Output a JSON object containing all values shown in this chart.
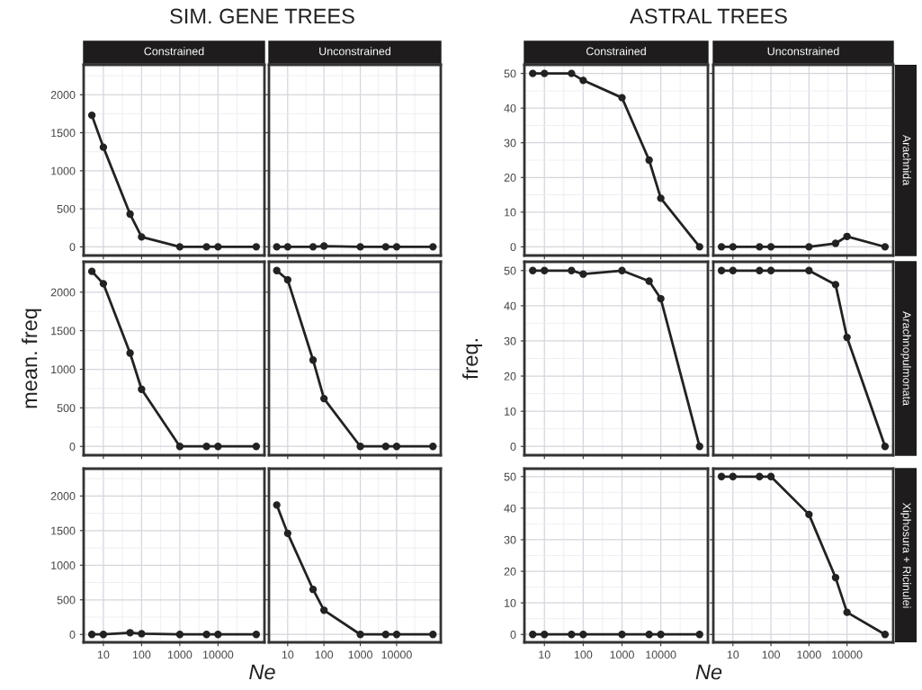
{
  "chart_data": [
    {
      "type": "line",
      "title": "Constrained",
      "annotations": [
        "SIM. GENE TREES"
      ],
      "x": [
        5,
        10,
        50,
        100,
        1000,
        5000,
        10000,
        100000
      ],
      "series": [
        {
          "color": "#222222",
          "values": [
            1730,
            1310,
            430,
            130,
            0,
            0,
            0,
            0
          ]
        }
      ],
      "log": "x",
      "xlim": [
        3.05,
        164000
      ],
      "xticks": [
        10,
        100,
        1000,
        10000
      ],
      "ylim": [
        -114,
        2394
      ],
      "yticks": [
        0,
        500,
        1000,
        1500,
        2000
      ],
      "grid": true,
      "marker": "circle",
      "line_style": "solid",
      "tick_labels": "y"
    },
    {
      "type": "line",
      "title": "Unconstrained",
      "x": [
        5,
        10,
        50,
        100,
        1000,
        5000,
        10000,
        100000
      ],
      "series": [
        {
          "color": "#222222",
          "values": [
            0,
            0,
            0,
            10,
            0,
            0,
            0,
            0
          ]
        }
      ],
      "log": "x",
      "xlim": [
        3.05,
        164000
      ],
      "xticks": [
        10,
        100,
        1000,
        10000
      ],
      "ylim": [
        -114,
        2394
      ],
      "yticks": [
        0,
        500,
        1000,
        1500,
        2000
      ],
      "grid": true,
      "marker": "circle",
      "line_style": "solid",
      "tick_labels": false
    },
    {
      "type": "line",
      "ylabel": "mean. freq",
      "x": [
        5,
        10,
        50,
        100,
        1000,
        5000,
        10000,
        100000
      ],
      "series": [
        {
          "color": "#222222",
          "values": [
            2270,
            2110,
            1210,
            740,
            0,
            0,
            0,
            0
          ]
        }
      ],
      "log": "x",
      "xlim": [
        3.05,
        164000
      ],
      "xticks": [
        10,
        100,
        1000,
        10000
      ],
      "ylim": [
        -114,
        2394
      ],
      "yticks": [
        0,
        500,
        1000,
        1500,
        2000
      ],
      "grid": true,
      "marker": "circle",
      "line_style": "solid",
      "tick_labels": "y"
    },
    {
      "type": "line",
      "x": [
        5,
        10,
        50,
        100,
        1000,
        5000,
        10000,
        100000
      ],
      "series": [
        {
          "color": "#222222",
          "values": [
            2280,
            2160,
            1120,
            620,
            0,
            0,
            0,
            0
          ]
        }
      ],
      "log": "x",
      "xlim": [
        3.05,
        164000
      ],
      "xticks": [
        10,
        100,
        1000,
        10000
      ],
      "ylim": [
        -114,
        2394
      ],
      "yticks": [
        0,
        500,
        1000,
        1500,
        2000
      ],
      "grid": true,
      "marker": "circle",
      "line_style": "solid",
      "tick_labels": false
    },
    {
      "type": "line",
      "xlabel": "Ne",
      "x": [
        5,
        10,
        50,
        100,
        1000,
        5000,
        10000,
        100000
      ],
      "series": [
        {
          "color": "#222222",
          "values": [
            0,
            0,
            25,
            10,
            0,
            0,
            0,
            0
          ]
        }
      ],
      "log": "x",
      "xlim": [
        3.05,
        164000
      ],
      "xticks": [
        10,
        100,
        1000,
        10000
      ],
      "ylim": [
        -114,
        2394
      ],
      "yticks": [
        0,
        500,
        1000,
        1500,
        2000
      ],
      "grid": true,
      "marker": "circle",
      "line_style": "solid"
    },
    {
      "type": "line",
      "x": [
        5,
        10,
        50,
        100,
        1000,
        5000,
        10000,
        100000
      ],
      "series": [
        {
          "color": "#222222",
          "values": [
            1870,
            1460,
            650,
            350,
            0,
            0,
            0,
            0
          ]
        }
      ],
      "log": "x",
      "xlim": [
        3.05,
        164000
      ],
      "xticks": [
        10,
        100,
        1000,
        10000
      ],
      "ylim": [
        -114,
        2394
      ],
      "yticks": [
        0,
        500,
        1000,
        1500,
        2000
      ],
      "grid": true,
      "marker": "circle",
      "line_style": "solid",
      "tick_labels": "x"
    },
    {
      "type": "line",
      "title": "Constrained",
      "annotations": [
        "ASTRAL TREES"
      ],
      "x": [
        5,
        10,
        50,
        100,
        1000,
        5000,
        10000,
        100000
      ],
      "series": [
        {
          "color": "#222222",
          "values": [
            50,
            50,
            50,
            48,
            43,
            25,
            14,
            0
          ]
        }
      ],
      "log": "x",
      "xlim": [
        3.05,
        164000
      ],
      "xticks": [
        10,
        100,
        1000,
        10000
      ],
      "ylim": [
        -2.5,
        52.5
      ],
      "yticks": [
        0,
        10,
        20,
        30,
        40,
        50
      ],
      "grid": true,
      "marker": "circle",
      "line_style": "solid",
      "tick_labels": "y"
    },
    {
      "type": "line",
      "title": "Unconstrained",
      "x": [
        5,
        10,
        50,
        100,
        1000,
        5000,
        10000,
        100000
      ],
      "series": [
        {
          "color": "#222222",
          "values": [
            0,
            0,
            0,
            0,
            0,
            1,
            3,
            0
          ]
        }
      ],
      "log": "x",
      "xlim": [
        3.05,
        164000
      ],
      "xticks": [
        10,
        100,
        1000,
        10000
      ],
      "ylim": [
        -2.5,
        52.5
      ],
      "yticks": [
        0,
        10,
        20,
        30,
        40,
        50
      ],
      "grid": true,
      "marker": "circle",
      "line_style": "solid",
      "tick_labels": false
    },
    {
      "type": "line",
      "ylabel": "freq.",
      "x": [
        5,
        10,
        50,
        100,
        1000,
        5000,
        10000,
        100000
      ],
      "series": [
        {
          "color": "#222222",
          "values": [
            50,
            50,
            50,
            49,
            50,
            47,
            42,
            0
          ]
        }
      ],
      "log": "x",
      "xlim": [
        3.05,
        164000
      ],
      "xticks": [
        10,
        100,
        1000,
        10000
      ],
      "ylim": [
        -2.5,
        52.5
      ],
      "yticks": [
        0,
        10,
        20,
        30,
        40,
        50
      ],
      "grid": true,
      "marker": "circle",
      "line_style": "solid",
      "tick_labels": "y"
    },
    {
      "type": "line",
      "x": [
        5,
        10,
        50,
        100,
        1000,
        5000,
        10000,
        100000
      ],
      "series": [
        {
          "color": "#222222",
          "values": [
            50,
            50,
            50,
            50,
            50,
            46,
            31,
            0
          ]
        }
      ],
      "log": "x",
      "xlim": [
        3.05,
        164000
      ],
      "xticks": [
        10,
        100,
        1000,
        10000
      ],
      "ylim": [
        -2.5,
        52.5
      ],
      "yticks": [
        0,
        10,
        20,
        30,
        40,
        50
      ],
      "grid": true,
      "marker": "circle",
      "line_style": "solid",
      "tick_labels": false
    },
    {
      "type": "line",
      "xlabel": "Ne",
      "x": [
        5,
        10,
        50,
        100,
        1000,
        5000,
        10000,
        100000
      ],
      "series": [
        {
          "color": "#222222",
          "values": [
            0,
            0,
            0,
            0,
            0,
            0,
            0,
            0
          ]
        }
      ],
      "log": "x",
      "xlim": [
        3.05,
        164000
      ],
      "xticks": [
        10,
        100,
        1000,
        10000
      ],
      "ylim": [
        -2.5,
        52.5
      ],
      "yticks": [
        0,
        10,
        20,
        30,
        40,
        50
      ],
      "grid": true,
      "marker": "circle",
      "line_style": "solid"
    },
    {
      "type": "line",
      "x": [
        5,
        10,
        50,
        100,
        1000,
        5000,
        10000,
        100000
      ],
      "series": [
        {
          "color": "#222222",
          "values": [
            50,
            50,
            50,
            50,
            38,
            18,
            7,
            0
          ]
        }
      ],
      "log": "x",
      "xlim": [
        3.05,
        164000
      ],
      "xticks": [
        10,
        100,
        1000,
        10000
      ],
      "ylim": [
        -2.5,
        52.5
      ],
      "yticks": [
        0,
        10,
        20,
        30,
        40,
        50
      ],
      "grid": true,
      "marker": "circle",
      "line_style": "solid",
      "tick_labels": "x"
    },
    {
      "type": "other",
      "annotations": [
        "Arachnida",
        "Arachnopulmonata",
        "Xiphosura + Ricinulei"
      ]
    }
  ]
}
